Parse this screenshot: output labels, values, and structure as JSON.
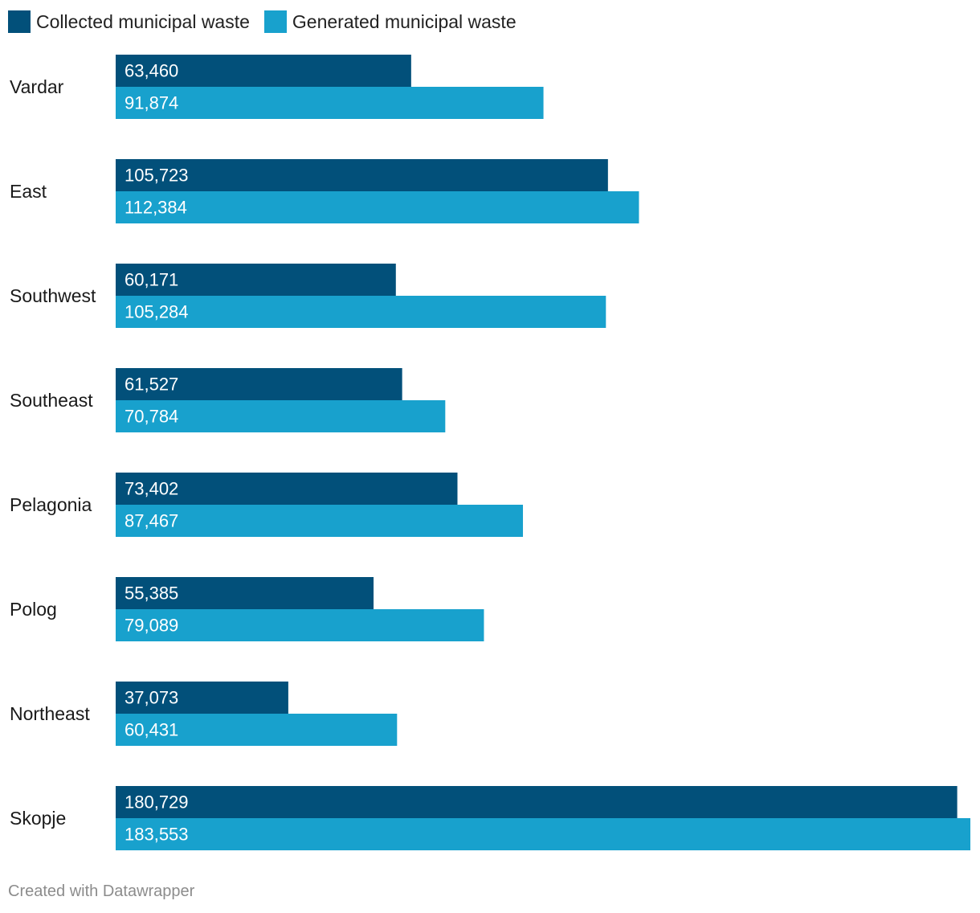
{
  "chart_data": {
    "type": "bar",
    "orientation": "horizontal",
    "categories": [
      "Vardar",
      "East",
      "Southwest",
      "Southeast",
      "Pelagonia",
      "Polog",
      "Northeast",
      "Skopje"
    ],
    "series": [
      {
        "name": "Collected municipal waste",
        "color": "#02507a",
        "values": [
          63460,
          105723,
          60171,
          61527,
          73402,
          55385,
          37073,
          180729
        ],
        "labels": [
          "63,460",
          "105,723",
          "60,171",
          "61,527",
          "73,402",
          "55,385",
          "37,073",
          "180,729"
        ]
      },
      {
        "name": "Generated municipal waste",
        "color": "#18a1cd",
        "values": [
          91874,
          112384,
          105284,
          70784,
          87467,
          79089,
          60431,
          183553
        ],
        "labels": [
          "91,874",
          "112,384",
          "105,284",
          "70,784",
          "87,467",
          "79,089",
          "60,431",
          "183,553"
        ]
      }
    ],
    "xlim": [
      0,
      183553
    ],
    "legend": "top-left",
    "grid": false
  },
  "footer": {
    "credit": "Created with Datawrapper"
  }
}
